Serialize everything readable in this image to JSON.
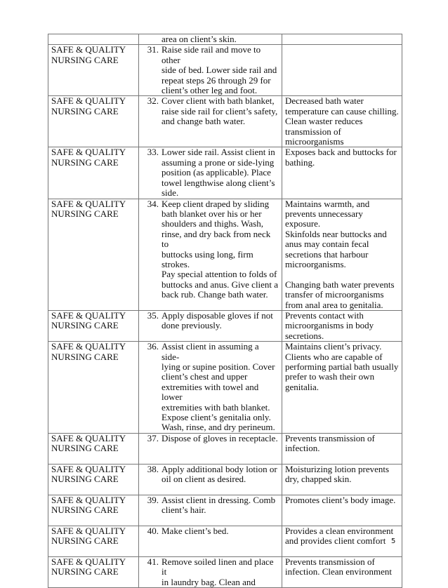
{
  "rows": [
    {
      "category": "",
      "num": "",
      "step": "area on client’s skin.",
      "rationale": "",
      "h": 15
    },
    {
      "category": "SAFE & QUALITY\nNURSING CARE",
      "num": "31.",
      "step": "Raise side rail and move to other\nside of bed. Lower side rail and\nrepeat steps 26 through 29 for\nclient’s other leg and foot.",
      "rationale": "",
      "h": 57
    },
    {
      "category": "SAFE & QUALITY\nNURSING CARE",
      "num": "32.",
      "step": "Cover client with bath blanket,\nraise side rail for client’s safety,\nand change bath water.",
      "rationale": "Decreased bath water\ntemperature can cause chilling.\nClean waster reduces\ntransmission of\nmicroorganisms",
      "h": 73
    },
    {
      "category": "SAFE & QUALITY\nNURSING CARE",
      "num": "33.",
      "step": "Lower side rail. Assist client in\nassuming a prone or side-lying\nposition (as applicable). Place\ntowel lengthwise along client’s\nside.",
      "rationale": "Exposes back and buttocks for\nbathing.",
      "h": 71
    },
    {
      "category": "SAFE & QUALITY\nNURSING CARE",
      "num": "34.",
      "step": "Keep client draped by sliding\nbath blanket over his or her\nshoulders and thighs. Wash,\nrinse, and dry back from neck to\nbuttocks using long, firm strokes.\nPay special attention to folds of\nbuttocks and anus. Give client a\nback rub.  Change bath water.",
      "rationale": "Maintains warmth, and\nprevents unnecessary exposure.\nSkinfolds near buttocks and\nanus may contain fecal\nsecretions that harbour\nmicroorganisms.\n\nChanging bath water prevents\ntransfer of microorganisms\nfrom anal area to genitalia.",
      "h": 146
    },
    {
      "category": "SAFE & QUALITY\nNURSING CARE",
      "num": "35.",
      "step": "Apply disposable gloves if not\ndone previously.",
      "rationale": "Prevents contact with\nmicroorganisms in body\nsecretions.",
      "h": 43
    },
    {
      "category": "SAFE & QUALITY\nNURSING CARE",
      "num": "36.",
      "step": "Assist client in assuming a side-\nlying or supine position. Cover\nclient’s chest and upper\nextremities with towel and lower\nextremities with bath blanket.\nExpose client’s genitalia only.\nWash, rinse, and dry perineum.",
      "rationale": "Maintains client’s privacy.\nClients who are capable of\nperforming partial bath usually\nprefer to wash their own\ngenitalia.",
      "h": 103
    },
    {
      "category": "SAFE & QUALITY\nNURSING CARE",
      "num": "37.",
      "step": "Dispose of gloves in receptacle.",
      "rationale": "Prevents transmission of\ninfection.",
      "h": 44
    },
    {
      "category": "SAFE & QUALITY\nNURSING CARE",
      "num": "38.",
      "step": "Apply additional body lotion or\noil on client as desired.",
      "rationale": "Moisturizing lotion prevents\ndry, chapped skin.",
      "h": 44
    },
    {
      "category": "SAFE & QUALITY\nNURSING CARE",
      "num": "39.",
      "step": "Assist client in dressing.  Comb\nclient’s hair.",
      "rationale": "Promotes client’s body image.",
      "h": 44
    },
    {
      "category": "SAFE & QUALITY\nNURSING CARE",
      "num": "40.",
      "step": "Make client’s bed.",
      "rationale": "Provides a clean environment\nand provides client comfort",
      "h": 44
    },
    {
      "category": "SAFE & QUALITY\nNURSING CARE",
      "num": "41.",
      "step": "Remove soiled linen and place it\nin laundry bag. Clean and",
      "rationale": "Prevents transmission of\ninfection.  Clean environment",
      "h": 29
    }
  ],
  "page_number": "5"
}
